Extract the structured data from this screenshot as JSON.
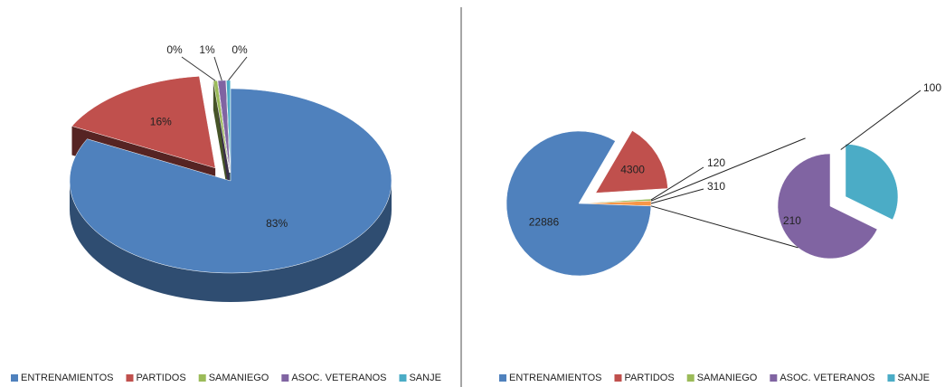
{
  "chart_data": [
    {
      "type": "pie3d",
      "categories": [
        "ENTRENAMIENTOS",
        "PARTIDOS",
        "SAMANIEGO",
        "ASOC. VETERANOS",
        "SANJE"
      ],
      "values": [
        83,
        16,
        0.4,
        0.8,
        0.4
      ],
      "value_labels": [
        "83%",
        "16%",
        "0%",
        "1%",
        "0%"
      ],
      "colors": [
        "#4f81bd",
        "#c0504d",
        "#9bbb59",
        "#8064a2",
        "#4bacc6"
      ],
      "legend": "bottom"
    },
    {
      "type": "pie-of-pie",
      "categories": [
        "ENTRENAMIENTOS",
        "PARTIDOS",
        "SAMANIEGO",
        "ASOC. VETERANOS",
        "SANJE"
      ],
      "values": [
        22886,
        4300,
        120,
        210,
        100
      ],
      "colors": [
        "#4f81bd",
        "#c0504d",
        "#9bbb59",
        "#8064a2",
        "#4bacc6"
      ],
      "split_count": 2,
      "split_value": 310,
      "split_color": "#f79646",
      "legend": "bottom"
    }
  ]
}
